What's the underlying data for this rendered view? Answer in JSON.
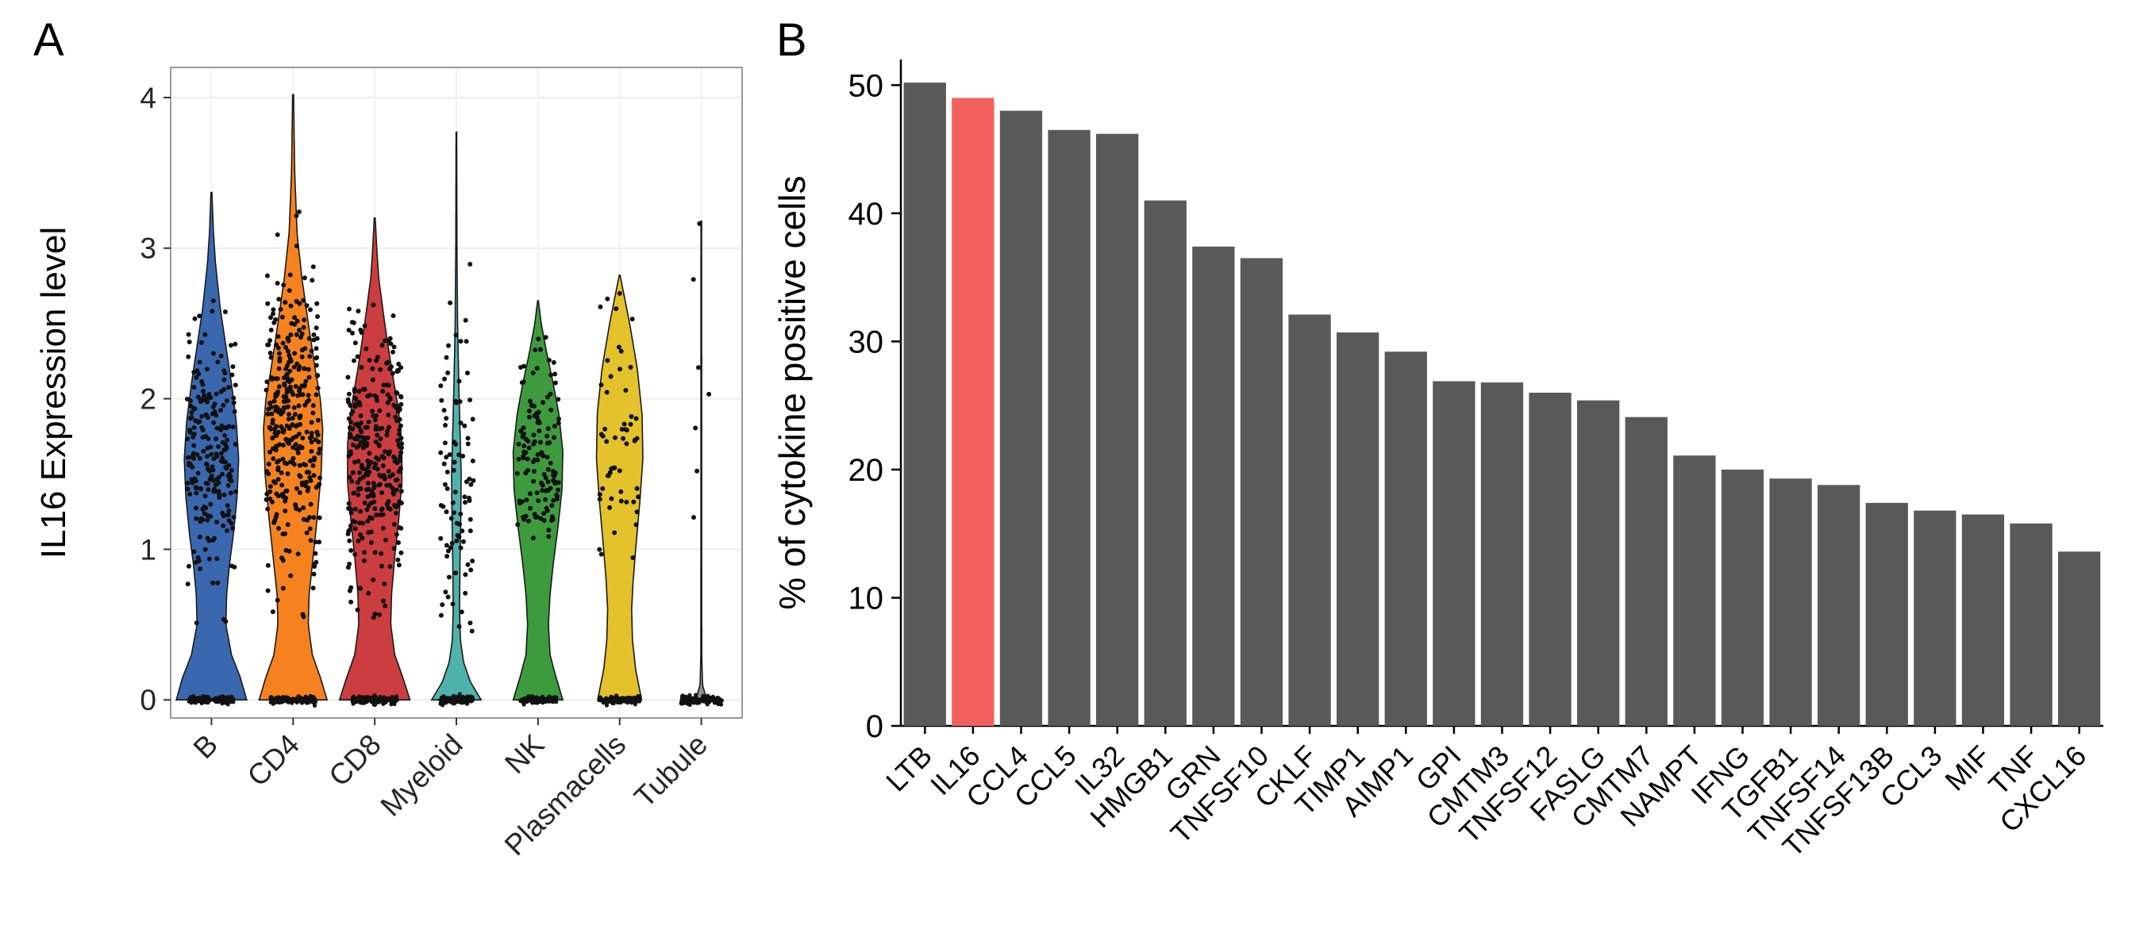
{
  "figure": {
    "background": "#ffffff",
    "panels": [
      {
        "letter": "A"
      },
      {
        "letter": "B"
      }
    ]
  },
  "chart_data": [
    {
      "type": "violin",
      "panel": "A",
      "title": "",
      "xlabel": "",
      "ylabel": "IL16 Expression level",
      "ylim": [
        0,
        4
      ],
      "yticks": [
        0,
        1,
        2,
        3,
        4
      ],
      "grid": true,
      "legend": "none",
      "point_color": "#111111",
      "outline_color": "#1a1a1a",
      "categories": [
        "B",
        "CD4",
        "CD8",
        "Myeloid",
        "NK",
        "Plasmacells",
        "Tubule"
      ],
      "series": [
        {
          "name": "B",
          "color": "#3A68AE",
          "max": 3.37,
          "profile": [
            [
              0,
              0.88
            ],
            [
              0.15,
              0.72
            ],
            [
              0.3,
              0.5
            ],
            [
              0.5,
              0.36
            ],
            [
              0.7,
              0.38
            ],
            [
              0.9,
              0.45
            ],
            [
              1.1,
              0.55
            ],
            [
              1.35,
              0.64
            ],
            [
              1.6,
              0.68
            ],
            [
              1.85,
              0.62
            ],
            [
              2.1,
              0.5
            ],
            [
              2.35,
              0.36
            ],
            [
              2.6,
              0.22
            ],
            [
              2.9,
              0.1
            ],
            [
              3.1,
              0.05
            ],
            [
              3.37,
              0.012
            ]
          ],
          "points": {
            "n": 230,
            "mean": 1.65,
            "sd": 0.45,
            "min": 0.5,
            "jitter_width": 0.6
          },
          "zero_strip": {
            "n": 140,
            "width": 0.55
          }
        },
        {
          "name": "CD4",
          "color": "#F5821E",
          "max": 4.02,
          "profile": [
            [
              0,
              0.85
            ],
            [
              0.15,
              0.68
            ],
            [
              0.3,
              0.48
            ],
            [
              0.5,
              0.38
            ],
            [
              0.7,
              0.4
            ],
            [
              0.9,
              0.48
            ],
            [
              1.2,
              0.6
            ],
            [
              1.5,
              0.7
            ],
            [
              1.8,
              0.74
            ],
            [
              2.0,
              0.68
            ],
            [
              2.2,
              0.55
            ],
            [
              2.5,
              0.38
            ],
            [
              2.8,
              0.22
            ],
            [
              3.1,
              0.1
            ],
            [
              3.5,
              0.04
            ],
            [
              4.02,
              0.012
            ]
          ],
          "points": {
            "n": 340,
            "mean": 1.8,
            "sd": 0.5,
            "min": 0.5,
            "jitter_width": 0.66
          },
          "zero_strip": {
            "n": 140,
            "width": 0.55
          }
        },
        {
          "name": "CD8",
          "color": "#CC3D3F",
          "max": 3.2,
          "profile": [
            [
              0,
              0.88
            ],
            [
              0.15,
              0.7
            ],
            [
              0.3,
              0.5
            ],
            [
              0.5,
              0.4
            ],
            [
              0.7,
              0.42
            ],
            [
              0.95,
              0.5
            ],
            [
              1.2,
              0.6
            ],
            [
              1.45,
              0.68
            ],
            [
              1.7,
              0.68
            ],
            [
              1.95,
              0.58
            ],
            [
              2.2,
              0.42
            ],
            [
              2.5,
              0.25
            ],
            [
              2.8,
              0.1
            ],
            [
              3.0,
              0.05
            ],
            [
              3.2,
              0.012
            ]
          ],
          "points": {
            "n": 320,
            "mean": 1.6,
            "sd": 0.45,
            "min": 0.45,
            "jitter_width": 0.66
          },
          "zero_strip": {
            "n": 140,
            "width": 0.55
          }
        },
        {
          "name": "Myeloid",
          "color": "#50B2AD",
          "max": 3.77,
          "profile": [
            [
              0,
              0.62
            ],
            [
              0.12,
              0.35
            ],
            [
              0.25,
              0.18
            ],
            [
              0.4,
              0.1
            ],
            [
              0.6,
              0.08
            ],
            [
              0.9,
              0.09
            ],
            [
              1.2,
              0.11
            ],
            [
              1.5,
              0.12
            ],
            [
              1.8,
              0.09
            ],
            [
              2.1,
              0.06
            ],
            [
              2.5,
              0.03
            ],
            [
              3.0,
              0.015
            ],
            [
              3.77,
              0.008
            ]
          ],
          "points": {
            "n": 90,
            "mean": 1.5,
            "sd": 0.55,
            "min": 0.45,
            "jitter_width": 0.42
          },
          "zero_strip": {
            "n": 120,
            "width": 0.4
          }
        },
        {
          "name": "NK",
          "color": "#3D9B3D",
          "max": 2.65,
          "profile": [
            [
              0,
              0.62
            ],
            [
              0.15,
              0.45
            ],
            [
              0.3,
              0.3
            ],
            [
              0.5,
              0.26
            ],
            [
              0.7,
              0.3
            ],
            [
              0.9,
              0.38
            ],
            [
              1.15,
              0.5
            ],
            [
              1.4,
              0.6
            ],
            [
              1.65,
              0.62
            ],
            [
              1.9,
              0.52
            ],
            [
              2.1,
              0.38
            ],
            [
              2.3,
              0.22
            ],
            [
              2.5,
              0.08
            ],
            [
              2.65,
              0.01
            ]
          ],
          "points": {
            "n": 130,
            "mean": 1.6,
            "sd": 0.35,
            "min": 0.55,
            "jitter_width": 0.52
          },
          "zero_strip": {
            "n": 120,
            "width": 0.45
          }
        },
        {
          "name": "Plasmacells",
          "color": "#E3C22B",
          "max": 2.82,
          "profile": [
            [
              0,
              0.55
            ],
            [
              0.2,
              0.4
            ],
            [
              0.4,
              0.32
            ],
            [
              0.6,
              0.3
            ],
            [
              0.8,
              0.34
            ],
            [
              1.0,
              0.4
            ],
            [
              1.3,
              0.5
            ],
            [
              1.6,
              0.58
            ],
            [
              1.9,
              0.56
            ],
            [
              2.2,
              0.44
            ],
            [
              2.5,
              0.25
            ],
            [
              2.7,
              0.1
            ],
            [
              2.82,
              0.01
            ]
          ],
          "points": {
            "n": 55,
            "mean": 1.7,
            "sd": 0.5,
            "min": 0.5,
            "jitter_width": 0.55
          },
          "zero_strip": {
            "n": 110,
            "width": 0.5
          }
        },
        {
          "name": "Tubule",
          "color": "#8F8F8F",
          "max": 3.18,
          "profile": [
            [
              0,
              0.14
            ],
            [
              0.1,
              0.03
            ],
            [
              0.3,
              0.012
            ],
            [
              1.0,
              0.01
            ],
            [
              2.0,
              0.01
            ],
            [
              3.18,
              0.008
            ]
          ],
          "points": {
            "n": 7,
            "mean": 1.9,
            "sd": 0.75,
            "min": 1.1,
            "jitter_width": 0.2
          },
          "zero_strip": {
            "n": 130,
            "width": 0.5
          }
        }
      ]
    },
    {
      "type": "bar",
      "panel": "B",
      "title": "",
      "xlabel": "",
      "ylabel": "% of cytokine positive cells",
      "ylim": [
        0,
        52
      ],
      "yticks": [
        0,
        10,
        20,
        30,
        40,
        50
      ],
      "grid": false,
      "legend": "none",
      "bar_color": "#595959",
      "highlight": {
        "category": "IL16",
        "color": "#F2605D"
      },
      "categories": [
        "LTB",
        "IL16",
        "CCL4",
        "CCL5",
        "IL32",
        "HMGB1",
        "GRN",
        "TNFSF10",
        "CKLF",
        "TIMP1",
        "AIMP1",
        "GPI",
        "CMTM3",
        "TNFSF12",
        "FASLG",
        "CMTM7",
        "NAMPT",
        "IFNG",
        "TGFB1",
        "TNFSF14",
        "TNFSF13B",
        "CCL3",
        "MIF",
        "TNF",
        "CXCL16"
      ],
      "values": [
        50.2,
        49.0,
        48.0,
        46.5,
        46.2,
        41.0,
        37.4,
        36.5,
        32.1,
        30.7,
        29.2,
        26.9,
        26.8,
        26.0,
        25.4,
        24.1,
        21.1,
        20.0,
        19.3,
        18.8,
        17.4,
        16.8,
        16.5,
        15.8,
        13.6
      ]
    }
  ]
}
